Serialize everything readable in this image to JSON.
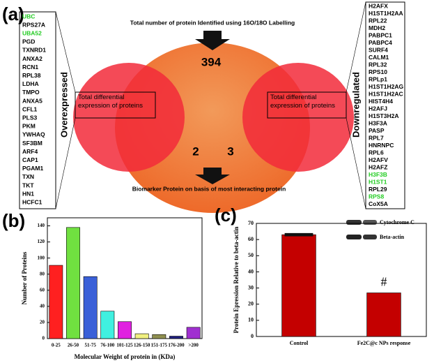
{
  "panel_a": {
    "label": "(a)",
    "top_text": "Total number of protein  Identified  using 16O/18O Labelling",
    "bottom_text": "Biomarker Protein on basis of most interacting protein",
    "center_count": "394",
    "left_count": "2",
    "right_count": "3",
    "left_side": "Overexpressed",
    "right_side": "Downregulated",
    "left_box": "Total differential expression of proteins",
    "right_box": "Total differential expression of proteins",
    "left_list": [
      {
        "text": "UBC",
        "color": "#22cc22"
      },
      {
        "text": "RPS27A",
        "color": "#000"
      },
      {
        "text": "UBA52",
        "color": "#22cc22"
      },
      {
        "text": "PGD",
        "color": "#000"
      },
      {
        "text": "TXNRD1",
        "color": "#000"
      },
      {
        "text": "ANXA2",
        "color": "#000"
      },
      {
        "text": "RCN1",
        "color": "#000"
      },
      {
        "text": "RPL38",
        "color": "#000"
      },
      {
        "text": "LDHA",
        "color": "#000"
      },
      {
        "text": "TMPO",
        "color": "#000"
      },
      {
        "text": "ANXA5",
        "color": "#000"
      },
      {
        "text": "CFL1",
        "color": "#000"
      },
      {
        "text": "PLS3",
        "color": "#000"
      },
      {
        "text": "PKM",
        "color": "#000"
      },
      {
        "text": "YWHAQ",
        "color": "#000"
      },
      {
        "text": "SF3BM",
        "color": "#000"
      },
      {
        "text": "ARF4",
        "color": "#000"
      },
      {
        "text": "CAP1",
        "color": "#000"
      },
      {
        "text": "PGAM1",
        "color": "#000"
      },
      {
        "text": "TXN",
        "color": "#000"
      },
      {
        "text": "TKT",
        "color": "#000"
      },
      {
        "text": "HN1",
        "color": "#000"
      },
      {
        "text": "HCFC1",
        "color": "#000"
      }
    ],
    "right_list": [
      {
        "text": "H2AFX",
        "color": "#000"
      },
      {
        "text": "H1ST1H2AA",
        "color": "#000"
      },
      {
        "text": "RPL22",
        "color": "#000"
      },
      {
        "text": "MDH2",
        "color": "#000"
      },
      {
        "text": "PABPC1",
        "color": "#000"
      },
      {
        "text": "PABPC4",
        "color": "#000"
      },
      {
        "text": "SURF4",
        "color": "#000"
      },
      {
        "text": "CALM1",
        "color": "#000"
      },
      {
        "text": "RPL32",
        "color": "#000"
      },
      {
        "text": "RPS10",
        "color": "#000"
      },
      {
        "text": "RPLp1",
        "color": "#000"
      },
      {
        "text": "H1ST1H2AG",
        "color": "#000"
      },
      {
        "text": "H1ST1H2AC",
        "color": "#000"
      },
      {
        "text": "HIST4H4",
        "color": "#000"
      },
      {
        "text": "H2AFJ",
        "color": "#000"
      },
      {
        "text": "H1ST3H2A",
        "color": "#000"
      },
      {
        "text": "H3F3A",
        "color": "#000"
      },
      {
        "text": "PASP",
        "color": "#000"
      },
      {
        "text": "RPL7",
        "color": "#000"
      },
      {
        "text": "HNRNPC",
        "color": "#000"
      },
      {
        "text": "RPL6",
        "color": "#000"
      },
      {
        "text": "H2AFV",
        "color": "#000"
      },
      {
        "text": "H2AFZ",
        "color": "#000"
      },
      {
        "text": "H3F3B",
        "color": "#22cc22"
      },
      {
        "text": "H1ST1",
        "color": "#22cc22"
      },
      {
        "text": "RPL29",
        "color": "#000"
      },
      {
        "text": "RPS8",
        "color": "#22cc22"
      },
      {
        "text": "CoX5A",
        "color": "#000"
      }
    ]
  },
  "chart_data": [
    {
      "type": "bar",
      "panel_label": "(b)",
      "xlabel": "Molecular Weight of protein in (KDa)",
      "ylabel": "Number of Proteins",
      "categories": [
        "0-25",
        "26-50",
        "51-75",
        "76-100",
        "101-125",
        "126-150",
        "151-175",
        "176-200",
        ">200"
      ],
      "values": [
        91,
        138,
        77,
        34,
        21,
        6,
        5,
        3,
        14
      ],
      "colors": [
        "#ff2020",
        "#70e040",
        "#3a60d8",
        "#40f0e0",
        "#e020e0",
        "#f0f080",
        "#909050",
        "#202080",
        "#a030d0"
      ],
      "ylim": [
        0,
        150
      ],
      "yticks": [
        0,
        20,
        40,
        60,
        80,
        100,
        120,
        140
      ]
    },
    {
      "type": "bar",
      "panel_label": "(c)",
      "ylabel": "Protein Epression Relative to beta-actin",
      "categories": [
        "Control",
        "Fe2C@c NPs response"
      ],
      "values": [
        63,
        27
      ],
      "errors": [
        1,
        0
      ],
      "color": "#c40000",
      "annotation": "#",
      "inset_labels": [
        "Cytochrome C",
        "Beta-actin"
      ],
      "ylim": [
        0,
        70
      ],
      "yticks": [
        0,
        10,
        20,
        30,
        40,
        50,
        60,
        70
      ]
    }
  ]
}
